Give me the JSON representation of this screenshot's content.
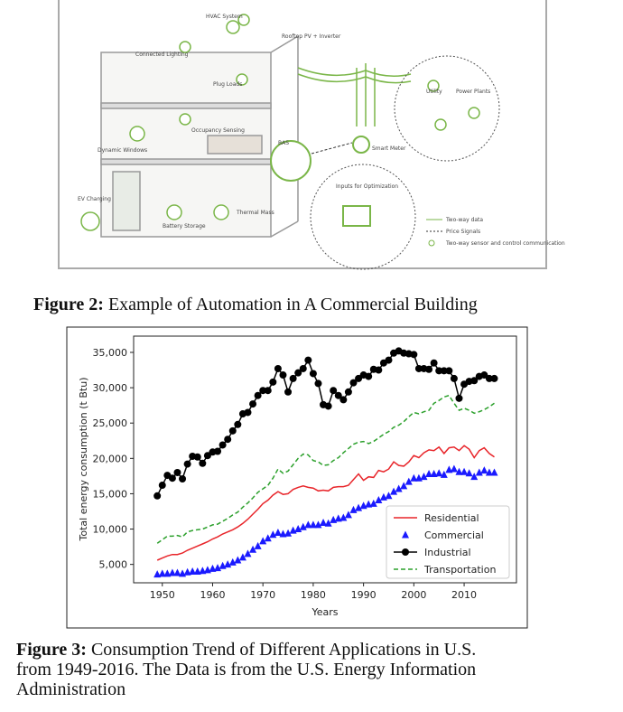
{
  "figure2": {
    "labels": [
      "HVAC System",
      "Rooftop PV + Inverter",
      "Connected Lighting",
      "Plug Loads",
      "Occupancy Sensing",
      "Dynamic Windows",
      "BAS",
      "Smart Meter",
      "Utility",
      "Power Plants",
      "Inputs for Optimization",
      "EV Charging",
      "Battery Storage",
      "Thermal Mass"
    ],
    "legend": [
      "Two-way data",
      "Price Signals",
      "Two-way sensor and control communication"
    ],
    "caption_label": "Figure 2:",
    "caption": "Example of Automation in A Commercial Building"
  },
  "chart_data": {
    "type": "line",
    "xlabel": "Years",
    "ylabel": "Total energy consumption (t Btu)",
    "x": [
      1949,
      1950,
      1951,
      1952,
      1953,
      1954,
      1955,
      1956,
      1957,
      1958,
      1959,
      1960,
      1961,
      1962,
      1963,
      1964,
      1965,
      1966,
      1967,
      1968,
      1969,
      1970,
      1971,
      1972,
      1973,
      1974,
      1975,
      1976,
      1977,
      1978,
      1979,
      1980,
      1981,
      1982,
      1983,
      1984,
      1985,
      1986,
      1987,
      1988,
      1989,
      1990,
      1991,
      1992,
      1993,
      1994,
      1995,
      1996,
      1997,
      1998,
      1999,
      2000,
      2001,
      2002,
      2003,
      2004,
      2005,
      2006,
      2007,
      2008,
      2009,
      2010,
      2011,
      2012,
      2013,
      2014,
      2015,
      2016
    ],
    "series": [
      {
        "name": "Residential",
        "color": "#e8252a",
        "linestyle": "solid",
        "marker": "none",
        "values": [
          5600,
          5900,
          6200,
          6400,
          6400,
          6600,
          7000,
          7300,
          7600,
          7900,
          8200,
          8600,
          8900,
          9300,
          9600,
          9900,
          10300,
          10800,
          11400,
          12100,
          12800,
          13600,
          14100,
          14800,
          15300,
          14900,
          15000,
          15600,
          15900,
          16100,
          15900,
          15800,
          15400,
          15500,
          15400,
          15900,
          16000,
          16000,
          16200,
          17000,
          17800,
          16900,
          17400,
          17300,
          18300,
          18100,
          18500,
          19500,
          19000,
          18900,
          19500,
          20400,
          20100,
          20800,
          21200,
          21100,
          21600,
          20700,
          21500,
          21600,
          21100,
          21800,
          21300,
          20100,
          21100,
          21500,
          20700,
          20200
        ]
      },
      {
        "name": "Commercial",
        "color": "#1a1aff",
        "linestyle": "none",
        "marker": "triangle",
        "values": [
          3600,
          3700,
          3700,
          3800,
          3800,
          3700,
          3900,
          4000,
          4000,
          4100,
          4200,
          4400,
          4500,
          4800,
          5000,
          5300,
          5600,
          6000,
          6500,
          7100,
          7600,
          8300,
          8700,
          9200,
          9500,
          9300,
          9400,
          9800,
          10000,
          10300,
          10600,
          10600,
          10600,
          10900,
          10800,
          11300,
          11500,
          11600,
          12000,
          12700,
          13000,
          13300,
          13500,
          13600,
          14100,
          14500,
          14700,
          15300,
          15700,
          16100,
          16700,
          17200,
          17200,
          17400,
          17800,
          17800,
          17900,
          17700,
          18400,
          18500,
          18100,
          18100,
          17900,
          17400,
          18000,
          18300,
          18000,
          18000
        ]
      },
      {
        "name": "Industrial",
        "color": "#000000",
        "linestyle": "solid",
        "marker": "circle",
        "values": [
          14700,
          16200,
          17600,
          17200,
          18000,
          17100,
          19200,
          20300,
          20200,
          19300,
          20400,
          20900,
          21000,
          21900,
          22700,
          23900,
          24800,
          26300,
          26500,
          27700,
          28900,
          29600,
          29600,
          30800,
          32700,
          31800,
          29400,
          31300,
          32100,
          32700,
          33900,
          32000,
          30600,
          27600,
          27400,
          29600,
          28900,
          28300,
          29400,
          30700,
          31300,
          31800,
          31600,
          32600,
          32500,
          33500,
          33900,
          34900,
          35200,
          34900,
          34800,
          34700,
          32700,
          32700,
          32600,
          33500,
          32400,
          32400,
          32400,
          31300,
          28500,
          30500,
          30900,
          31000,
          31600,
          31800,
          31300,
          31300
        ]
      },
      {
        "name": "Transportation",
        "color": "#2ca02c",
        "linestyle": "dashed",
        "marker": "none",
        "values": [
          8000,
          8500,
          9000,
          9000,
          9100,
          8900,
          9600,
          9800,
          9900,
          10000,
          10300,
          10600,
          10700,
          11100,
          11500,
          12000,
          12400,
          13100,
          13700,
          14400,
          15200,
          15700,
          16200,
          17200,
          18500,
          17900,
          18200,
          19100,
          20000,
          20600,
          20500,
          19700,
          19500,
          19000,
          19100,
          19700,
          20100,
          20800,
          21400,
          22000,
          22300,
          22400,
          22100,
          22400,
          22900,
          23400,
          23800,
          24400,
          24700,
          25200,
          25900,
          26500,
          26300,
          26600,
          26800,
          27800,
          28200,
          28700,
          28900,
          27800,
          26800,
          27100,
          26800,
          26400,
          26600,
          26900,
          27300,
          27800
        ]
      }
    ],
    "xlim": [
      1944.3,
      2020.4
    ],
    "ylim": [
      2400,
      37300
    ],
    "xticks": [
      1950,
      1960,
      1970,
      1980,
      1990,
      2000,
      2010
    ],
    "yticks": [
      {
        "value": 5000,
        "label": "5,000"
      },
      {
        "value": 10000,
        "label": "10,000"
      },
      {
        "value": 15000,
        "label": "15,000"
      },
      {
        "value": 20000,
        "label": "20,000"
      },
      {
        "value": 25000,
        "label": "25,000"
      },
      {
        "value": 30000,
        "label": "30,000"
      },
      {
        "value": 35000,
        "label": "35,000"
      }
    ],
    "grid": false,
    "legend_position": "lower right"
  },
  "figure3": {
    "caption_label": "Figure 3:",
    "caption_lines": [
      "Consumption Trend of Different Applications in U.S.",
      "from 1949-2016. The Data is from the U.S. Energy Information",
      "Administration"
    ]
  }
}
